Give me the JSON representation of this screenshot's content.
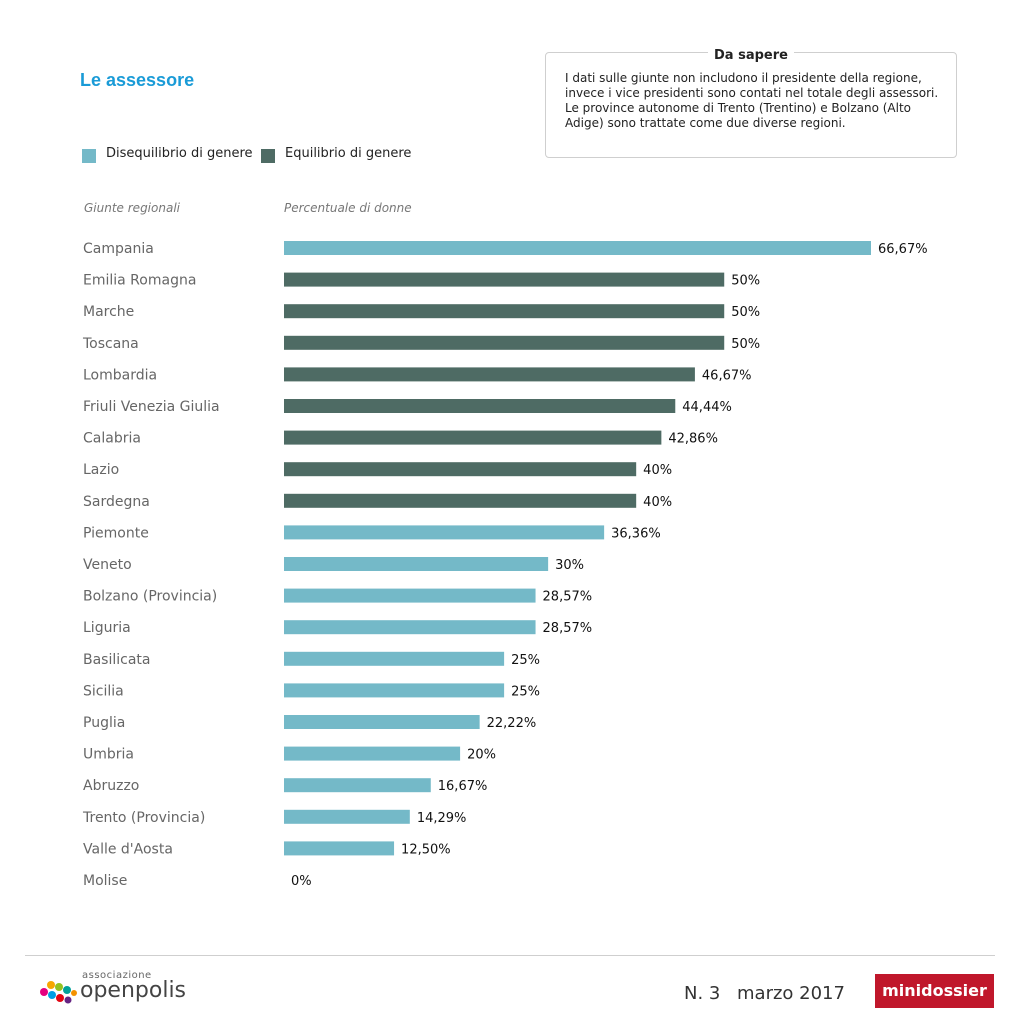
{
  "title": "Le assessore",
  "legend": [
    {
      "label": "Disequilibrio di genere",
      "color": "#74b9c8"
    },
    {
      "label": "Equilibrio di genere",
      "color": "#4e6b64"
    }
  ],
  "note": {
    "title": "Da sapere",
    "text": "I dati sulle giunte non includono il presidente della regione, invece i vice presidenti sono contati nel totale degli assessori. Le province autonome di Trento (Trentino) e Bolzano (Alto Adige) sono trattate come due diverse regioni."
  },
  "chart_data": {
    "type": "bar",
    "orientation": "horizontal",
    "category_header": "Giunte regionali",
    "value_header": "Percentuale di donne",
    "categories": [
      "Campania",
      "Emilia Romagna",
      "Marche",
      "Toscana",
      "Lombardia",
      "Friuli Venezia Giulia",
      "Calabria",
      "Lazio",
      "Sardegna",
      "Piemonte",
      "Veneto",
      "Bolzano (Provincia)",
      "Liguria",
      "Basilicata",
      "Sicilia",
      "Puglia",
      "Umbria",
      "Abruzzo",
      "Trento (Provincia)",
      "Valle d'Aosta",
      "Molise"
    ],
    "values": [
      66.67,
      50,
      50,
      50,
      46.67,
      44.44,
      42.86,
      40,
      40,
      36.36,
      30,
      28.57,
      28.57,
      25,
      25,
      22.22,
      20,
      16.67,
      14.29,
      12.5,
      0
    ],
    "value_labels": [
      "66,67%",
      "50%",
      "50%",
      "50%",
      "46,67%",
      "44,44%",
      "42,86%",
      "40%",
      "40%",
      "36,36%",
      "30%",
      "28,57%",
      "28,57%",
      "25%",
      "25%",
      "22,22%",
      "20%",
      "16,67%",
      "14,29%",
      "12,50%",
      "0%"
    ],
    "groups": [
      "Disequilibrio di genere",
      "Equilibrio di genere",
      "Equilibrio di genere",
      "Equilibrio di genere",
      "Equilibrio di genere",
      "Equilibrio di genere",
      "Equilibrio di genere",
      "Equilibrio di genere",
      "Equilibrio di genere",
      "Disequilibrio di genere",
      "Disequilibrio di genere",
      "Disequilibrio di genere",
      "Disequilibrio di genere",
      "Disequilibrio di genere",
      "Disequilibrio di genere",
      "Disequilibrio di genere",
      "Disequilibrio di genere",
      "Disequilibrio di genere",
      "Disequilibrio di genere",
      "Disequilibrio di genere",
      "Disequilibrio di genere"
    ],
    "xlim": [
      0,
      66.67
    ]
  },
  "footer": {
    "logo_small": "associazione",
    "logo_name": "openpolis",
    "issue": "N. 3",
    "date": "marzo 2017",
    "brand": "minidossier"
  }
}
